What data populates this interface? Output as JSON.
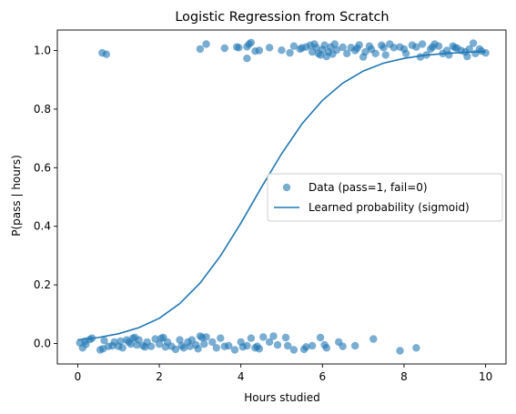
{
  "chart_data": {
    "type": "scatter",
    "title": "Logistic Regression from Scratch",
    "xlabel": "Hours studied",
    "ylabel": "P(pass | hours)",
    "xlim": [
      -0.5,
      10.5
    ],
    "ylim": [
      -0.07,
      1.07
    ],
    "xticks": [
      0,
      2,
      4,
      6,
      8,
      10
    ],
    "yticks": [
      0.0,
      0.2,
      0.4,
      0.6,
      0.8,
      1.0
    ],
    "ytick_labels": [
      "0.0",
      "0.2",
      "0.4",
      "0.6",
      "0.8",
      "1.0"
    ],
    "grid": false,
    "legend_position": "center-right",
    "colors": {
      "points": "#1f77b4",
      "curve": "#1f77b4"
    },
    "series": [
      {
        "name": "Data (pass=1, fail=0)",
        "kind": "scatter",
        "points": [
          [
            0.6,
            0.992
          ],
          [
            0.7,
            0.987
          ],
          [
            3.0,
            1.005
          ],
          [
            3.15,
            1.022
          ],
          [
            3.6,
            1.008
          ],
          [
            3.9,
            1.012
          ],
          [
            3.95,
            1.01
          ],
          [
            4.15,
            1.013
          ],
          [
            4.2,
            1.022
          ],
          [
            4.25,
            1.027
          ],
          [
            4.15,
            0.973
          ],
          [
            4.35,
            0.998
          ],
          [
            4.45,
            1.0
          ],
          [
            4.7,
            1.01
          ],
          [
            5.0,
            1.001
          ],
          [
            5.2,
            0.992
          ],
          [
            5.3,
            1.015
          ],
          [
            5.45,
            1.005
          ],
          [
            5.5,
            1.009
          ],
          [
            5.6,
            1.012
          ],
          [
            5.7,
            1.018
          ],
          [
            5.75,
            0.995
          ],
          [
            5.8,
            1.022
          ],
          [
            5.85,
            1.01
          ],
          [
            5.9,
            0.99
          ],
          [
            5.95,
            0.985
          ],
          [
            6.0,
            1.003
          ],
          [
            6.05,
            1.018
          ],
          [
            6.1,
            0.98
          ],
          [
            6.15,
            0.995
          ],
          [
            6.2,
            1.012
          ],
          [
            6.25,
            0.988
          ],
          [
            6.3,
            1.022
          ],
          [
            6.35,
            1.002
          ],
          [
            6.5,
            1.011
          ],
          [
            6.6,
            0.99
          ],
          [
            6.7,
            1.01
          ],
          [
            6.8,
            1.0
          ],
          [
            6.85,
            1.008
          ],
          [
            6.9,
            1.019
          ],
          [
            7.0,
            0.978
          ],
          [
            7.05,
            0.995
          ],
          [
            7.15,
            1.015
          ],
          [
            7.2,
            1.004
          ],
          [
            7.3,
            0.99
          ],
          [
            7.45,
            1.018
          ],
          [
            7.5,
            1.01
          ],
          [
            7.55,
            0.985
          ],
          [
            7.65,
            1.022
          ],
          [
            7.75,
            1.01
          ],
          [
            7.9,
            1.012
          ],
          [
            8.0,
            1.005
          ],
          [
            8.05,
            0.99
          ],
          [
            8.2,
            1.018
          ],
          [
            8.3,
            1.012
          ],
          [
            8.4,
            0.978
          ],
          [
            8.45,
            1.022
          ],
          [
            8.55,
            0.985
          ],
          [
            8.65,
            1.005
          ],
          [
            8.7,
            1.012
          ],
          [
            8.75,
            1.022
          ],
          [
            8.85,
            1.015
          ],
          [
            8.95,
            0.99
          ],
          [
            9.05,
            1.0
          ],
          [
            9.1,
            0.985
          ],
          [
            9.2,
            1.015
          ],
          [
            9.25,
            1.01
          ],
          [
            9.3,
            1.008
          ],
          [
            9.4,
            1.0
          ],
          [
            9.5,
            0.995
          ],
          [
            9.55,
            0.98
          ],
          [
            9.6,
            1.005
          ],
          [
            9.7,
            1.025
          ],
          [
            9.75,
            0.99
          ],
          [
            9.85,
            1.005
          ],
          [
            9.9,
            0.998
          ],
          [
            10.0,
            0.992
          ],
          [
            0.05,
            0.002
          ],
          [
            0.12,
            -0.015
          ],
          [
            0.18,
            0.008
          ],
          [
            0.2,
            -0.003
          ],
          [
            0.3,
            0.014
          ],
          [
            0.35,
            0.018
          ],
          [
            0.55,
            -0.022
          ],
          [
            0.62,
            -0.018
          ],
          [
            0.65,
            0.01
          ],
          [
            0.75,
            -0.01
          ],
          [
            0.85,
            -0.008
          ],
          [
            0.9,
            0.005
          ],
          [
            1.0,
            -0.01
          ],
          [
            1.05,
            0.008
          ],
          [
            1.1,
            -0.015
          ],
          [
            1.2,
            0.012
          ],
          [
            1.25,
            0.005
          ],
          [
            1.3,
            -0.002
          ],
          [
            1.35,
            0.018
          ],
          [
            1.4,
            0.02
          ],
          [
            1.45,
            -0.005
          ],
          [
            1.5,
            0.012
          ],
          [
            1.6,
            -0.008
          ],
          [
            1.65,
            -0.012
          ],
          [
            1.7,
            0.005
          ],
          [
            1.8,
            -0.01
          ],
          [
            1.9,
            0.015
          ],
          [
            2.0,
            -0.002
          ],
          [
            2.05,
            0.018
          ],
          [
            2.1,
            0.02
          ],
          [
            2.15,
            -0.012
          ],
          [
            2.2,
            0.005
          ],
          [
            2.3,
            -0.01
          ],
          [
            2.4,
            -0.02
          ],
          [
            2.5,
            0.012
          ],
          [
            2.55,
            -0.008
          ],
          [
            2.6,
            -0.015
          ],
          [
            2.7,
            0.005
          ],
          [
            2.75,
            -0.01
          ],
          [
            2.8,
            0.012
          ],
          [
            2.9,
            -0.005
          ],
          [
            2.95,
            -0.018
          ],
          [
            3.0,
            0.025
          ],
          [
            3.05,
            0.02
          ],
          [
            3.1,
            -0.002
          ],
          [
            3.15,
            0.022
          ],
          [
            3.3,
            0.005
          ],
          [
            3.4,
            -0.015
          ],
          [
            3.5,
            0.018
          ],
          [
            3.6,
            -0.01
          ],
          [
            3.7,
            -0.008
          ],
          [
            3.85,
            -0.022
          ],
          [
            4.0,
            0.005
          ],
          [
            4.05,
            -0.012
          ],
          [
            4.15,
            -0.008
          ],
          [
            4.25,
            0.018
          ],
          [
            4.35,
            -0.015
          ],
          [
            4.4,
            -0.01
          ],
          [
            4.45,
            -0.018
          ],
          [
            4.55,
            0.022
          ],
          [
            4.7,
            0.005
          ],
          [
            4.8,
            0.025
          ],
          [
            4.9,
            -0.005
          ],
          [
            5.1,
            0.02
          ],
          [
            5.15,
            -0.008
          ],
          [
            5.3,
            -0.022
          ],
          [
            5.55,
            -0.02
          ],
          [
            5.6,
            -0.012
          ],
          [
            5.75,
            -0.008
          ],
          [
            5.95,
            0.02
          ],
          [
            6.05,
            -0.005
          ],
          [
            6.1,
            -0.015
          ],
          [
            6.4,
            0.005
          ],
          [
            6.5,
            -0.01
          ],
          [
            6.8,
            -0.008
          ],
          [
            7.25,
            0.015
          ],
          [
            7.9,
            -0.025
          ],
          [
            8.3,
            -0.015
          ]
        ]
      },
      {
        "name": "Learned probability (sigmoid)",
        "kind": "line",
        "x": [
          0,
          0.5,
          1,
          1.5,
          2,
          2.5,
          3,
          3.5,
          4,
          4.5,
          5,
          5.5,
          6,
          6.5,
          7,
          7.5,
          8,
          8.5,
          9,
          9.5,
          10
        ],
        "y": [
          0.012,
          0.02,
          0.033,
          0.054,
          0.086,
          0.136,
          0.206,
          0.299,
          0.411,
          0.532,
          0.648,
          0.75,
          0.83,
          0.889,
          0.93,
          0.957,
          0.973,
          0.984,
          0.99,
          0.994,
          0.996
        ]
      }
    ]
  }
}
